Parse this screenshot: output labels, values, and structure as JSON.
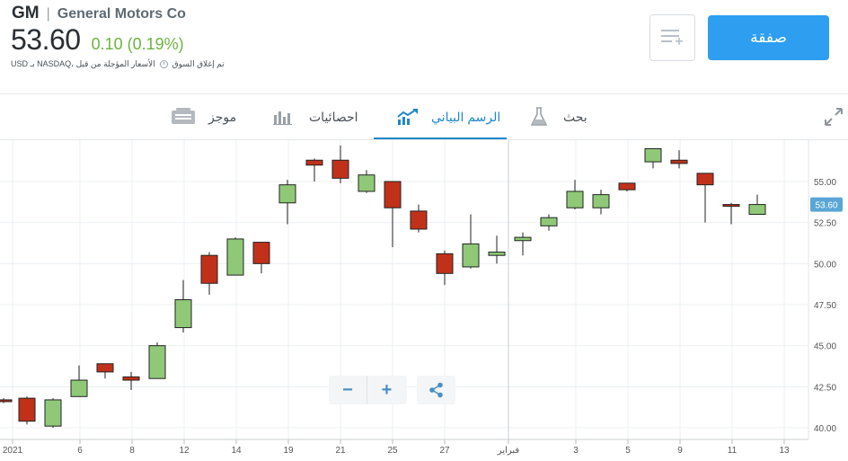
{
  "header": {
    "ticker": "GM",
    "separator": "|",
    "company": "General Motors Co",
    "price": "53.60",
    "change": "0.10 (0.19%)",
    "market_status": "تم إغلاق السوق",
    "price_note": "USD بـ NASDAQ، الأسعار المؤجلة من قبل"
  },
  "actions": {
    "trade_label": "صفقة",
    "watchlist_icon": "add-to-list-icon"
  },
  "tabs": [
    {
      "label": "بحث",
      "icon": "flask-icon"
    },
    {
      "label": "الرسم البياني",
      "icon": "chart-trend-icon",
      "active": true
    },
    {
      "label": "احصائيات",
      "icon": "bar-stats-icon"
    },
    {
      "label": "موجز",
      "icon": "news-icon"
    }
  ],
  "chart_controls": {
    "zoom_out": "−",
    "zoom_in": "+",
    "share_icon": "share-icon"
  },
  "colors": {
    "up": "#8fc978",
    "down": "#c1311a",
    "accent": "#2d9ef0",
    "price_tag": "#5aa6d6",
    "change_positive": "#6db33f"
  },
  "chart_data": {
    "type": "candlestick",
    "last_price_label": "53.60",
    "ylim": [
      39.5,
      57.5
    ],
    "y_ticks": [
      "40.00",
      "42.50",
      "45.00",
      "47.50",
      "50.00",
      "52.50",
      "55.00"
    ],
    "x_ticks": [
      "2021",
      "6",
      "8",
      "12",
      "14",
      "19",
      "21",
      "25",
      "27",
      "فبراير",
      "3",
      "5",
      "9",
      "11",
      "13"
    ],
    "candles": [
      {
        "d": "Jan 4",
        "o": 41.7,
        "h": 41.8,
        "l": 41.5,
        "c": 41.6
      },
      {
        "d": "Jan 5",
        "o": 41.8,
        "h": 41.9,
        "l": 40.2,
        "c": 40.4
      },
      {
        "d": "Jan 6",
        "o": 40.1,
        "h": 41.8,
        "l": 40.0,
        "c": 41.7
      },
      {
        "d": "Jan 7",
        "o": 41.9,
        "h": 43.8,
        "l": 41.9,
        "c": 42.9
      },
      {
        "d": "Jan 8",
        "o": 43.9,
        "h": 43.9,
        "l": 43.0,
        "c": 43.4
      },
      {
        "d": "Jan 11",
        "o": 43.1,
        "h": 43.4,
        "l": 42.3,
        "c": 42.9
      },
      {
        "d": "Jan 12",
        "o": 43.0,
        "h": 45.2,
        "l": 43.0,
        "c": 45.0
      },
      {
        "d": "Jan 13",
        "o": 46.1,
        "h": 49.0,
        "l": 45.8,
        "c": 47.8
      },
      {
        "d": "Jan 14",
        "o": 50.5,
        "h": 50.7,
        "l": 48.1,
        "c": 48.8
      },
      {
        "d": "Jan 15",
        "o": 49.3,
        "h": 51.6,
        "l": 49.3,
        "c": 51.5
      },
      {
        "d": "Jan 19",
        "o": 51.3,
        "h": 51.3,
        "l": 49.4,
        "c": 50.0
      },
      {
        "d": "Jan 20",
        "o": 53.7,
        "h": 55.1,
        "l": 52.4,
        "c": 54.8
      },
      {
        "d": "Jan 21",
        "o": 56.3,
        "h": 56.4,
        "l": 55.0,
        "c": 56.0
      },
      {
        "d": "Jan 22",
        "o": 56.3,
        "h": 57.2,
        "l": 54.9,
        "c": 55.2
      },
      {
        "d": "Jan 25",
        "o": 54.4,
        "h": 55.7,
        "l": 54.3,
        "c": 55.4
      },
      {
        "d": "Jan 26",
        "o": 55.0,
        "h": 55.0,
        "l": 51.0,
        "c": 53.4
      },
      {
        "d": "Jan 27",
        "o": 53.2,
        "h": 53.6,
        "l": 51.9,
        "c": 52.1
      },
      {
        "d": "Jan 28",
        "o": 50.6,
        "h": 50.8,
        "l": 48.7,
        "c": 49.4
      },
      {
        "d": "Jan 29",
        "o": 49.8,
        "h": 53.0,
        "l": 49.7,
        "c": 51.2
      },
      {
        "d": "Feb 1",
        "o": 50.5,
        "h": 51.7,
        "l": 50.0,
        "c": 50.7
      },
      {
        "d": "Feb 2",
        "o": 51.4,
        "h": 51.9,
        "l": 50.5,
        "c": 51.6
      },
      {
        "d": "Feb 3",
        "o": 52.3,
        "h": 53.0,
        "l": 52.0,
        "c": 52.8
      },
      {
        "d": "Feb 4",
        "o": 53.4,
        "h": 55.1,
        "l": 53.3,
        "c": 54.4
      },
      {
        "d": "Feb 5",
        "o": 53.4,
        "h": 54.5,
        "l": 53.0,
        "c": 54.2
      },
      {
        "d": "Feb 8",
        "o": 54.9,
        "h": 54.9,
        "l": 54.4,
        "c": 54.5
      },
      {
        "d": "Feb 9",
        "o": 56.2,
        "h": 57.0,
        "l": 55.8,
        "c": 57.0
      },
      {
        "d": "Feb 10",
        "o": 56.3,
        "h": 56.9,
        "l": 55.8,
        "c": 56.1
      },
      {
        "d": "Feb 11",
        "o": 55.5,
        "h": 55.5,
        "l": 52.5,
        "c": 54.8
      },
      {
        "d": "Feb 12",
        "o": 53.6,
        "h": 53.7,
        "l": 52.4,
        "c": 53.5
      },
      {
        "d": "Feb 16",
        "o": 53.0,
        "h": 54.2,
        "l": 53.0,
        "c": 53.6
      }
    ]
  }
}
